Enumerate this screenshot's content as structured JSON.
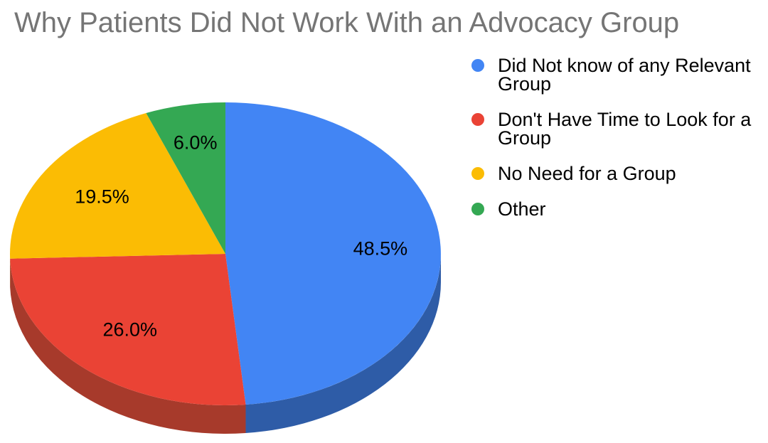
{
  "title": "Why Patients Did Not Work With an Advocacy Group",
  "colors": {
    "background": "#ffffff",
    "title_text": "#757575",
    "label_text": "#000000"
  },
  "chart_data": {
    "type": "pie",
    "style": "3d",
    "title": "Why Patients Did Not Work With an Advocacy Group",
    "legend_position": "right",
    "start_angle": "12 o'clock",
    "direction": "clockwise",
    "slices": [
      {
        "label": "Did Not know of any Relevant Group",
        "value": 48.5,
        "pct_label": "48.5%",
        "color": "#4285F4",
        "side_color": "#2E5CA7"
      },
      {
        "label": "Don't Have Time to Look for a Group",
        "value": 26.0,
        "pct_label": "26.0%",
        "color": "#EA4335",
        "side_color": "#A73A2B"
      },
      {
        "label": "No Need for a Group",
        "value": 19.5,
        "pct_label": "19.5%",
        "color": "#FBBC04",
        "side_color": "#B08603"
      },
      {
        "label": "Other",
        "value": 6.0,
        "pct_label": "6.0%",
        "color": "#34A853",
        "side_color": "#25763A"
      }
    ]
  }
}
